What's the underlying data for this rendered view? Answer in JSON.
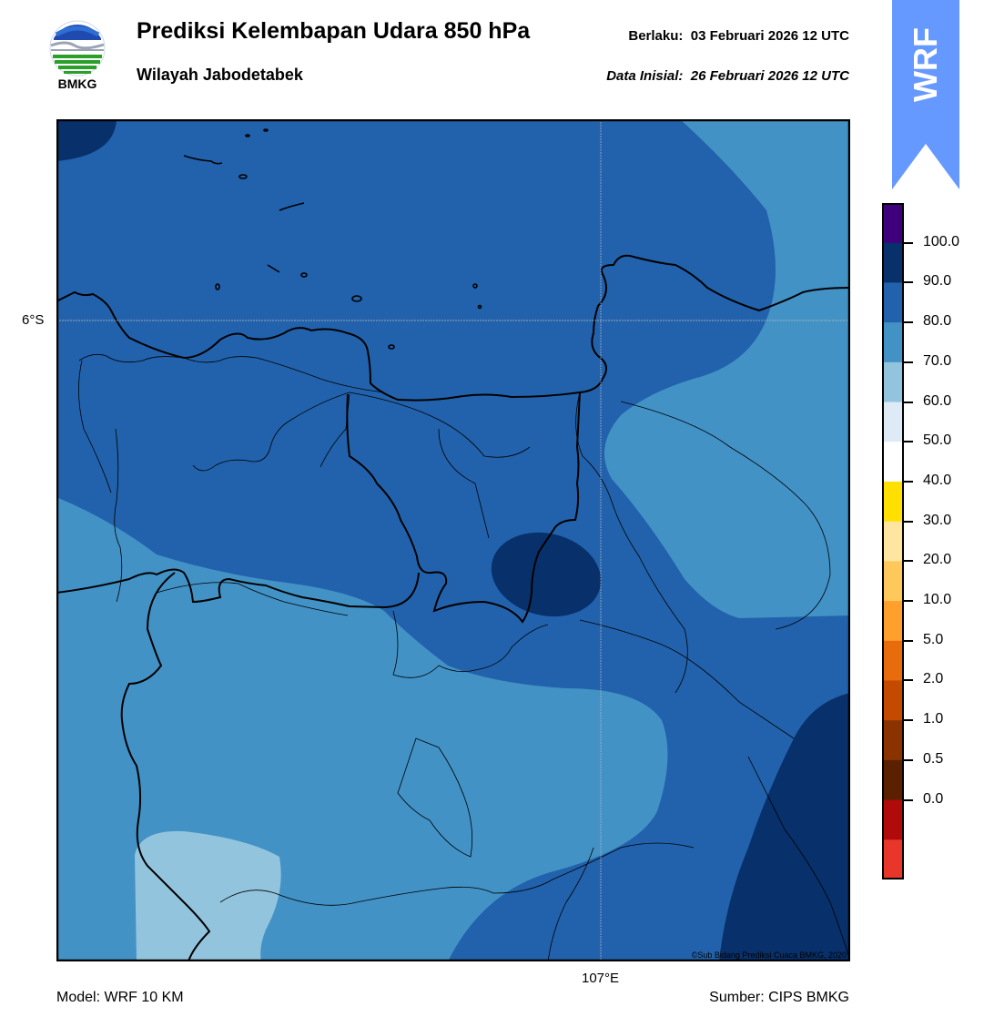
{
  "header": {
    "title": "Prediksi Kelembapan Udara 850 hPa",
    "subtitle": "Wilayah Jabodetabek",
    "valid_prefix": "Berlaku:",
    "valid_time": "03 Februari 2026 12 UTC",
    "init_prefix": "Data Inisial:",
    "init_time": "26 Februari 2026 12 UTC"
  },
  "logo": {
    "text": "BMKG",
    "icon": "bmkg-logo"
  },
  "badge": {
    "text": "WRF",
    "icon": "wrf-up-arrow-badge",
    "color": "#6699ff"
  },
  "map": {
    "lat_label": "6°S",
    "lon_label": "107°E",
    "credit": "©Sub Bidang Prediksi Cuaca BMKG, 2020",
    "fill_colors": {
      "80-90": "#2262ac",
      "70-80": "#4292c6",
      "60-70": "#93c4de",
      "90-100": "#08306b"
    }
  },
  "colorbar": {
    "ticks": [
      "100.0",
      "90.0",
      "80.0",
      "70.0",
      "60.0",
      "50.0",
      "40.0",
      "30.0",
      "20.0",
      "10.0",
      "5.0",
      "2.0",
      "1.0",
      "0.5",
      "0.0"
    ],
    "colors": [
      "#3f007d",
      "#08306b",
      "#2262ac",
      "#4292c6",
      "#93c4de",
      "#deebf7",
      "#ffffff",
      "#ffe000",
      "#ffe6a0",
      "#ffc85a",
      "#ffa02d",
      "#e86b0c",
      "#c44a00",
      "#8b3300",
      "#5a2000",
      "#b00a0a",
      "#e8372a"
    ]
  },
  "footer": {
    "model": "Model: WRF 10 KM",
    "source": "Sumber: CIPS BMKG"
  }
}
